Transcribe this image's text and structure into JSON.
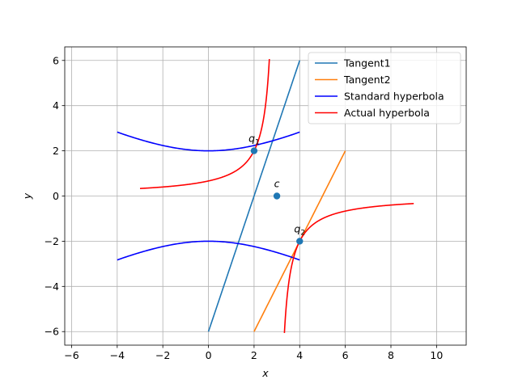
{
  "chart_data": {
    "type": "line",
    "xlabel": "x",
    "ylabel": "y",
    "xlim": [
      -6.3,
      11.3
    ],
    "ylim": [
      -6.6,
      6.6
    ],
    "x_ticks": [
      -6,
      -4,
      -2,
      0,
      2,
      4,
      6,
      8,
      10
    ],
    "y_ticks": [
      -6,
      -4,
      -2,
      0,
      2,
      4,
      6
    ],
    "grid": true,
    "legend_position": "top-right",
    "series": [
      {
        "name": "Tangent1",
        "color": "#1f77b4",
        "kind": "function",
        "expr": "3*x - 6",
        "x_range": [
          0,
          4
        ]
      },
      {
        "name": "Tangent2",
        "color": "#ff7f0e",
        "kind": "function",
        "expr": "2*x - 10",
        "x_range": [
          2,
          6
        ]
      },
      {
        "name": "Standard hyperbola",
        "color": "#0000ff",
        "kind": "function-pair",
        "expr": "±sqrt(4 + x*x/4)",
        "x_range": [
          -4,
          4
        ]
      },
      {
        "name": "Actual hyperbola",
        "color": "#ff0000",
        "kind": "hyperbola",
        "center": [
          3,
          0
        ],
        "equation": "(x-3)*y = -2",
        "left_x_range": [
          -3,
          2.67
        ],
        "right_x_range": [
          3.33,
          9
        ]
      }
    ],
    "points": [
      {
        "label": "q",
        "subscript": "1",
        "x": 2,
        "y": 2
      },
      {
        "label": "c",
        "subscript": "",
        "x": 3,
        "y": 0
      },
      {
        "label": "q",
        "subscript": "2",
        "x": 4,
        "y": -2
      }
    ],
    "point_color": "#1f77b4"
  }
}
